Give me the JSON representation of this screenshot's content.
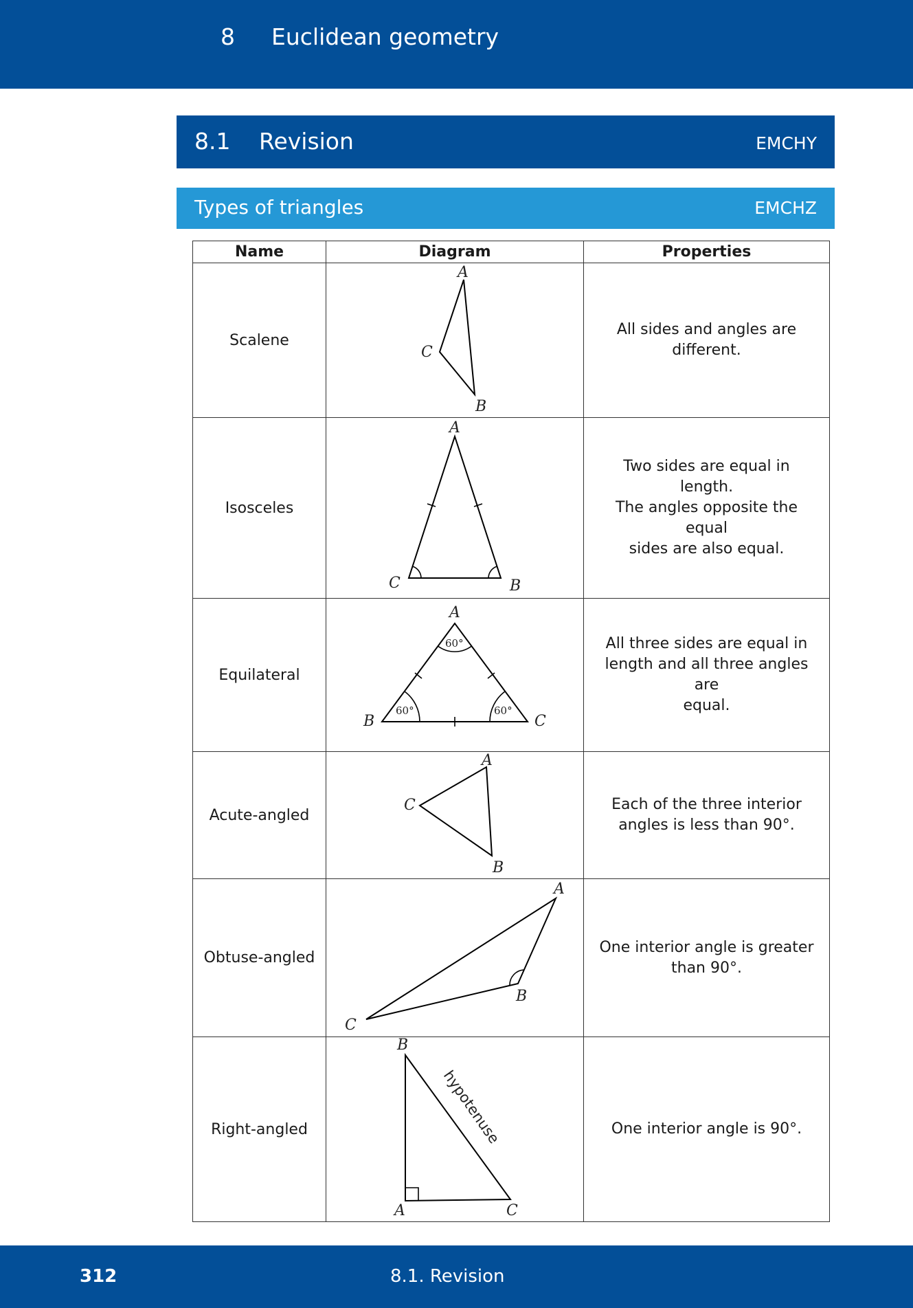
{
  "chapter": {
    "number": "8",
    "title": "Euclidean  geometry"
  },
  "section": {
    "number": "8.1",
    "title": "Revision",
    "code": "EMCHY"
  },
  "subsection": {
    "title": "Types of triangles",
    "code": "EMCHZ"
  },
  "table": {
    "headers": [
      "Name",
      "Diagram",
      "Properties"
    ],
    "rows": [
      {
        "name": "Scalene",
        "properties": [
          "All sides and angles are",
          "different."
        ],
        "labels": {
          "A": "A",
          "B": "B",
          "C": "C"
        }
      },
      {
        "name": "Isosceles",
        "properties": [
          "Two sides are equal in length.",
          "The angles opposite the equal",
          "sides are also equal."
        ],
        "labels": {
          "A": "A",
          "B": "B",
          "C": "C"
        }
      },
      {
        "name": "Equilateral",
        "properties": [
          "All three sides are equal in",
          "length and all three angles are",
          "equal."
        ],
        "labels": {
          "A": "A",
          "B": "B",
          "C": "C"
        },
        "angle_labels": [
          "60°",
          "60°",
          "60°"
        ]
      },
      {
        "name": "Acute-angled",
        "properties": [
          "Each of the three interior",
          "angles is less than 90°."
        ],
        "labels": {
          "A": "A",
          "B": "B",
          "C": "C"
        }
      },
      {
        "name": "Obtuse-angled",
        "properties": [
          "One interior angle is greater",
          "than 90°."
        ],
        "labels": {
          "A": "A",
          "B": "B",
          "C": "C"
        }
      },
      {
        "name": "Right-angled",
        "properties": [
          "One interior angle is 90°."
        ],
        "labels": {
          "A": "A",
          "B": "B",
          "C": "C"
        },
        "side_label": "hypotenuse"
      }
    ]
  },
  "footer": {
    "page_number": "312",
    "section": "8.1.   Revision"
  },
  "colors": {
    "dark_blue": "#034f98",
    "light_blue": "#2598d6"
  }
}
